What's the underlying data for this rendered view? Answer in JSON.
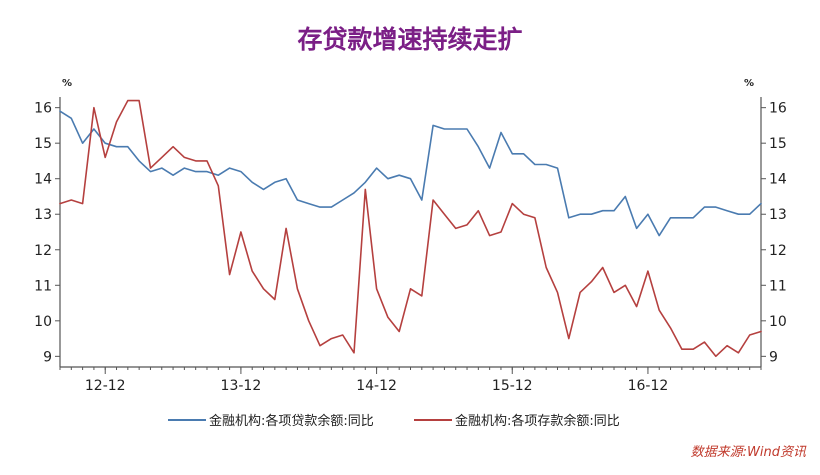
{
  "chart_data": {
    "type": "line",
    "title": "存贷款增速持续走扩",
    "y_unit_left": "%",
    "y_unit_right": "%",
    "ylim": [
      8.7,
      16.3
    ],
    "yticks": [
      9,
      10,
      11,
      12,
      13,
      14,
      15,
      16
    ],
    "x_tick_labels": [
      "12-12",
      "13-12",
      "14-12",
      "15-12",
      "16-12"
    ],
    "x_tick_positions": [
      4,
      16,
      28,
      40,
      52
    ],
    "x_range": [
      0,
      62
    ],
    "legend_position": "bottom",
    "grid": false,
    "source": "数据来源:Wind资讯",
    "series": [
      {
        "name": "金融机构:各项贷款余额:同比",
        "color": "#4a7bb0",
        "x": [
          0,
          1,
          2,
          3,
          4,
          5,
          6,
          7,
          8,
          9,
          10,
          11,
          12,
          13,
          14,
          15,
          16,
          17,
          18,
          19,
          20,
          21,
          22,
          23,
          24,
          25,
          26,
          27,
          28,
          29,
          30,
          31,
          32,
          33,
          34,
          35,
          36,
          37,
          38,
          39,
          40,
          41,
          42,
          43,
          44,
          45,
          46,
          47,
          48,
          49,
          50,
          51,
          52,
          53,
          54,
          55,
          56,
          57,
          58,
          59,
          60,
          61,
          62
        ],
        "values": [
          15.9,
          15.7,
          15.0,
          15.4,
          15.0,
          14.9,
          14.9,
          14.5,
          14.2,
          14.3,
          14.1,
          14.3,
          14.2,
          14.2,
          14.1,
          14.3,
          14.2,
          13.9,
          13.7,
          13.9,
          14.0,
          13.4,
          13.3,
          13.2,
          13.2,
          13.4,
          13.6,
          13.9,
          14.3,
          14.0,
          14.1,
          14.0,
          13.4,
          15.5,
          15.4,
          15.4,
          15.4,
          14.9,
          14.3,
          15.3,
          14.7,
          14.7,
          14.4,
          14.4,
          14.3,
          12.9,
          13.0,
          13.0,
          13.1,
          13.1,
          13.5,
          12.6,
          13.0,
          12.4,
          12.9,
          12.9,
          12.9,
          13.2,
          13.2,
          13.1,
          13.0,
          13.0,
          13.3
        ]
      },
      {
        "name": "金融机构:各项存款余额:同比",
        "color": "#b5403f",
        "x": [
          0,
          1,
          2,
          3,
          4,
          5,
          6,
          7,
          8,
          9,
          10,
          11,
          12,
          13,
          14,
          15,
          16,
          17,
          18,
          19,
          20,
          21,
          22,
          23,
          24,
          25,
          26,
          27,
          28,
          29,
          30,
          31,
          32,
          33,
          34,
          35,
          36,
          37,
          38,
          39,
          40,
          41,
          42,
          43,
          44,
          45,
          46,
          47,
          48,
          49,
          50,
          51,
          52,
          53,
          54,
          55,
          56,
          57,
          58,
          59,
          60,
          61,
          62
        ],
        "values": [
          13.3,
          13.4,
          13.3,
          16.0,
          14.6,
          15.6,
          16.2,
          16.2,
          14.3,
          14.6,
          14.9,
          14.6,
          14.5,
          14.5,
          13.8,
          11.3,
          12.5,
          11.4,
          10.9,
          10.6,
          12.6,
          10.9,
          10.0,
          9.3,
          9.5,
          9.6,
          9.1,
          13.7,
          10.9,
          10.1,
          9.7,
          10.9,
          10.7,
          13.4,
          13.0,
          12.6,
          12.7,
          13.1,
          12.4,
          12.5,
          13.3,
          13.0,
          12.9,
          11.5,
          10.8,
          9.5,
          10.8,
          11.1,
          11.5,
          10.8,
          11.0,
          10.4,
          11.4,
          10.3,
          9.8,
          9.2,
          9.2,
          9.4,
          9.0,
          9.3,
          9.1,
          9.6,
          9.7
        ]
      }
    ]
  }
}
